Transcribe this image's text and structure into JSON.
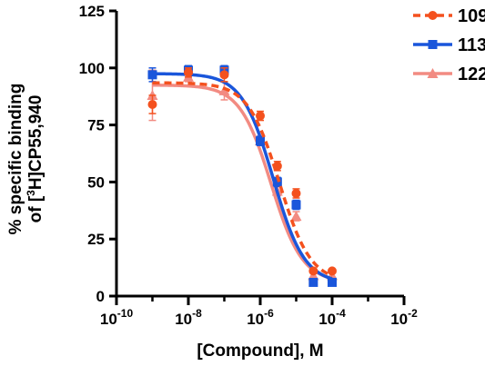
{
  "chart_data": {
    "type": "scatter",
    "xscale": "log10",
    "xlim": [
      1e-10,
      0.01
    ],
    "ylim": [
      0,
      125
    ],
    "grid": false,
    "legend_position": "top-right",
    "xlabel": "[Compound],  M",
    "ylabel_line1": "% specific binding",
    "ylabel_line2_prefix": "of [",
    "ylabel_line2_sup": "3",
    "ylabel_line2_suffix": "H]CP55,940",
    "xticks": [
      {
        "base": "10",
        "exp": "-10",
        "value": 1e-10
      },
      {
        "base": "10",
        "exp": "-8",
        "value": 1e-08
      },
      {
        "base": "10",
        "exp": "-6",
        "value": 1e-06
      },
      {
        "base": "10",
        "exp": "-4",
        "value": 0.0001
      },
      {
        "base": "10",
        "exp": "-2",
        "value": 0.01
      }
    ],
    "yticks": [
      0,
      25,
      50,
      75,
      100,
      125
    ],
    "series": [
      {
        "name": "109",
        "color": "#F4511E",
        "marker": "circle",
        "line": "dashed",
        "x": [
          1e-09,
          1e-08,
          1e-07,
          1e-06,
          3e-06,
          1e-05,
          3e-05,
          0.0001
        ],
        "y": [
          84,
          98,
          97,
          79,
          57,
          45,
          11,
          11
        ],
        "err": [
          4,
          2,
          3,
          2,
          2,
          2,
          0,
          0
        ],
        "fit": {
          "top": 93.5,
          "bottom": 6,
          "ic50": 3.4e-06,
          "hill": 1
        }
      },
      {
        "name": "113",
        "color": "#1A56DB",
        "marker": "square",
        "line": "solid",
        "x": [
          1e-09,
          1e-08,
          1e-07,
          1e-06,
          3e-06,
          1e-05,
          3e-05,
          0.0001
        ],
        "y": [
          97,
          99,
          99,
          68,
          50,
          40,
          6,
          6
        ],
        "err": [
          3,
          2,
          2,
          2,
          2,
          2,
          0,
          0
        ],
        "fit": {
          "top": 97.5,
          "bottom": 5.5,
          "ic50": 2.3e-06,
          "hill": 1
        }
      },
      {
        "name": "122",
        "color": "#F28B82",
        "marker": "triangle",
        "line": "solid",
        "x": [
          1e-09,
          1e-08,
          1e-07,
          1e-06,
          3e-06,
          1e-05,
          3e-05,
          0.0001
        ],
        "y": [
          88,
          96,
          90,
          68,
          46,
          35,
          9,
          9
        ],
        "err": [
          11,
          2,
          4,
          2,
          2,
          2,
          0,
          0
        ],
        "fit": {
          "top": 92.5,
          "bottom": 6,
          "ic50": 2e-06,
          "hill": 1
        }
      }
    ]
  }
}
